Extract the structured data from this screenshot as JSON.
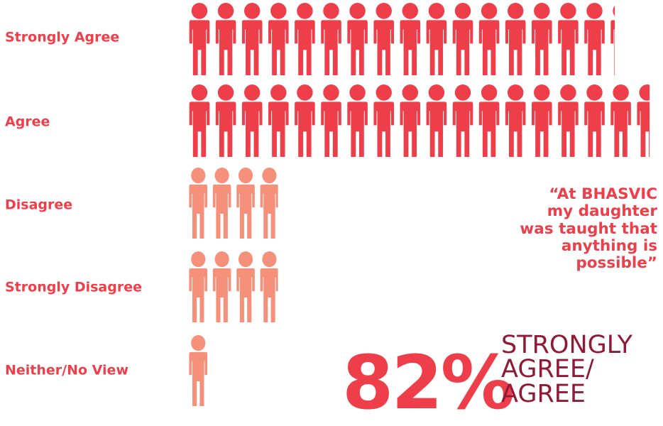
{
  "chart_data": {
    "type": "pictogram",
    "categories": [
      "Strongly Agree",
      "Agree",
      "Disagree",
      "Strongly Disagree",
      "Neither/No View"
    ],
    "values": [
      16.25,
      17.6,
      3.9,
      3.9,
      1
    ]
  },
  "colors": {
    "agree": "#ee3e4a",
    "disagree": "#f5917a",
    "headline": "#8e1a36"
  },
  "quote": {
    "lines": [
      "“At BHASVIC",
      "my daughter",
      "was taught that",
      "anything is",
      "possible”"
    ]
  },
  "stat": {
    "percent": "82%",
    "headline_lines": [
      "STRONGLY",
      "AGREE/",
      "AGREE"
    ]
  }
}
